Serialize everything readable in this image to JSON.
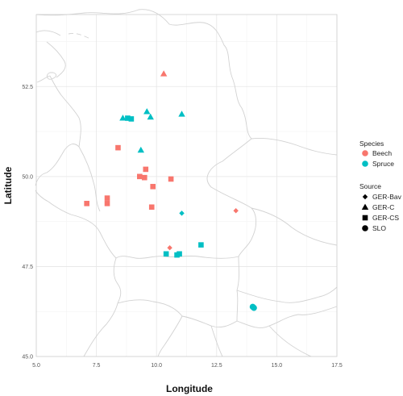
{
  "chart_data": {
    "type": "scatter",
    "xlabel": "Longitude",
    "ylabel": "Latitude",
    "xlim": [
      5.0,
      17.5
    ],
    "ylim": [
      45.0,
      54.5
    ],
    "x_ticks": [
      "5.0",
      "7.5",
      "10.0",
      "12.5",
      "15.0",
      "17.5"
    ],
    "y_ticks": [
      "45.0",
      "47.5",
      "50.0",
      "52.5"
    ],
    "grid": true,
    "legend_position": "right",
    "legend": {
      "color_title": "Species",
      "color_entries": [
        {
          "label": "Beech",
          "color": "#F8766D"
        },
        {
          "label": "Spruce",
          "color": "#00BFC4"
        }
      ],
      "shape_title": "Source",
      "shape_entries": [
        {
          "label": "GER-Bav",
          "shape": "diamond"
        },
        {
          "label": "GER-C",
          "shape": "triangle"
        },
        {
          "label": "GER-CS",
          "shape": "square"
        },
        {
          "label": "SLO",
          "shape": "circle"
        }
      ]
    },
    "points": [
      {
        "x": 10.3,
        "y": 52.85,
        "species": "Beech",
        "source": "GER-C"
      },
      {
        "x": 8.4,
        "y": 50.8,
        "species": "Beech",
        "source": "GER-CS"
      },
      {
        "x": 9.55,
        "y": 50.2,
        "species": "Beech",
        "source": "GER-CS"
      },
      {
        "x": 9.3,
        "y": 50.0,
        "species": "Beech",
        "source": "GER-CS"
      },
      {
        "x": 9.5,
        "y": 49.97,
        "species": "Beech",
        "source": "GER-CS"
      },
      {
        "x": 10.6,
        "y": 49.93,
        "species": "Beech",
        "source": "GER-CS"
      },
      {
        "x": 9.85,
        "y": 49.72,
        "species": "Beech",
        "source": "GER-CS"
      },
      {
        "x": 7.1,
        "y": 49.25,
        "species": "Beech",
        "source": "GER-CS"
      },
      {
        "x": 7.95,
        "y": 49.4,
        "species": "Beech",
        "source": "GER-CS"
      },
      {
        "x": 7.95,
        "y": 49.25,
        "species": "Beech",
        "source": "GER-CS"
      },
      {
        "x": 9.8,
        "y": 49.15,
        "species": "Beech",
        "source": "GER-CS"
      },
      {
        "x": 13.3,
        "y": 49.05,
        "species": "Beech",
        "source": "GER-Bav"
      },
      {
        "x": 10.55,
        "y": 48.02,
        "species": "Beech",
        "source": "GER-Bav"
      },
      {
        "x": 8.6,
        "y": 51.62,
        "species": "Spruce",
        "source": "GER-C"
      },
      {
        "x": 9.6,
        "y": 51.8,
        "species": "Spruce",
        "source": "GER-C"
      },
      {
        "x": 9.75,
        "y": 51.65,
        "species": "Spruce",
        "source": "GER-C"
      },
      {
        "x": 11.05,
        "y": 51.73,
        "species": "Spruce",
        "source": "GER-C"
      },
      {
        "x": 9.35,
        "y": 50.73,
        "species": "Spruce",
        "source": "GER-C"
      },
      {
        "x": 8.8,
        "y": 51.62,
        "species": "Spruce",
        "source": "GER-CS"
      },
      {
        "x": 8.95,
        "y": 51.6,
        "species": "Spruce",
        "source": "GER-CS"
      },
      {
        "x": 11.05,
        "y": 48.98,
        "species": "Spruce",
        "source": "GER-Bav"
      },
      {
        "x": 10.4,
        "y": 47.85,
        "species": "Spruce",
        "source": "GER-CS"
      },
      {
        "x": 10.85,
        "y": 47.82,
        "species": "Spruce",
        "source": "GER-CS"
      },
      {
        "x": 10.95,
        "y": 47.85,
        "species": "Spruce",
        "source": "GER-CS"
      },
      {
        "x": 11.85,
        "y": 48.1,
        "species": "Spruce",
        "source": "GER-CS"
      },
      {
        "x": 14.0,
        "y": 46.38,
        "species": "Spruce",
        "source": "SLO"
      },
      {
        "x": 14.05,
        "y": 46.35,
        "species": "Spruce",
        "source": "SLO"
      }
    ]
  }
}
